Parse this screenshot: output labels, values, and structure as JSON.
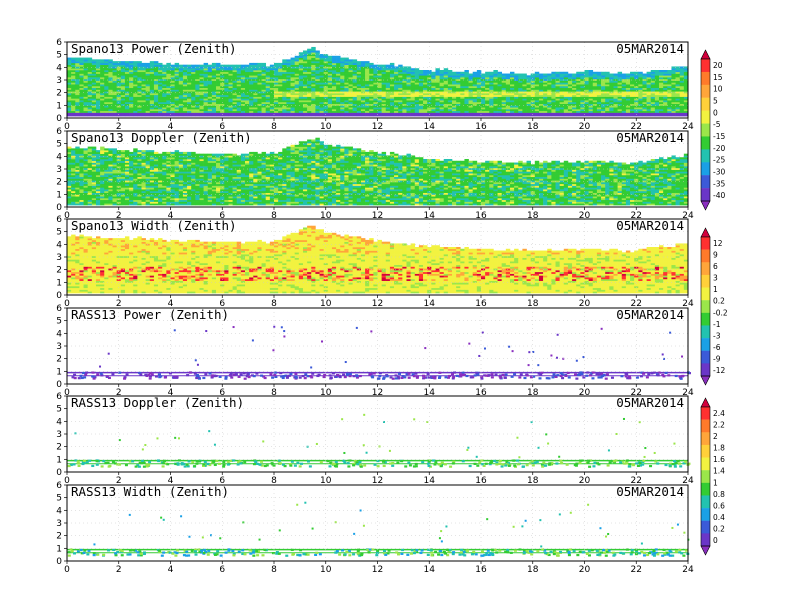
{
  "figure": {
    "date_label": "05MAR2014"
  },
  "chart_data": [
    {
      "type": "heatmap",
      "title": "Spano13 Power (Zenith)",
      "date": "05MAR2014",
      "x_ticks": [
        "0",
        "2",
        "4",
        "6",
        "8",
        "10",
        "12",
        "14",
        "16",
        "18",
        "20",
        "22",
        "24"
      ],
      "y_ticks": [
        "0",
        "1",
        "2",
        "3",
        "4",
        "5",
        "6"
      ],
      "xlim": [
        0,
        24
      ],
      "ylim": [
        0,
        6
      ],
      "grid": true,
      "colorscale": "shared-1",
      "data_top": [
        [
          0,
          4.8
        ],
        [
          2,
          4.6
        ],
        [
          4,
          4.4
        ],
        [
          6,
          4.3
        ],
        [
          8,
          4.3
        ],
        [
          9.5,
          5.6
        ],
        [
          10,
          5.0
        ],
        [
          12,
          4.4
        ],
        [
          14,
          3.9
        ],
        [
          16,
          3.7
        ],
        [
          18,
          3.6
        ],
        [
          20,
          3.7
        ],
        [
          22,
          3.6
        ],
        [
          24,
          4.2
        ]
      ],
      "features": [
        {
          "label": "low band",
          "height_km": 0.45,
          "value": -38
        },
        {
          "label": "bright layer",
          "height_km": 1.8,
          "value": 2
        }
      ]
    },
    {
      "type": "heatmap",
      "title": "Spano13 Doppler (Zenith)",
      "date": "05MAR2014",
      "x_ticks": [
        "0",
        "2",
        "4",
        "6",
        "8",
        "10",
        "12",
        "14",
        "16",
        "18",
        "20",
        "22",
        "24"
      ],
      "y_ticks": [
        "0",
        "1",
        "2",
        "3",
        "4",
        "5",
        "6"
      ],
      "xlim": [
        0,
        24
      ],
      "ylim": [
        0,
        6
      ],
      "grid": true,
      "colorscale": "shared-1",
      "data_top": [
        [
          0,
          4.8
        ],
        [
          2,
          4.6
        ],
        [
          4,
          4.4
        ],
        [
          6,
          4.3
        ],
        [
          8,
          4.3
        ],
        [
          9.5,
          5.6
        ],
        [
          10,
          5.0
        ],
        [
          12,
          4.4
        ],
        [
          14,
          3.9
        ],
        [
          16,
          3.7
        ],
        [
          18,
          3.6
        ],
        [
          20,
          3.7
        ],
        [
          22,
          3.6
        ],
        [
          24,
          4.2
        ]
      ],
      "features": []
    },
    {
      "type": "heatmap",
      "title": "Spano13 Width (Zenith)",
      "date": "05MAR2014",
      "x_ticks": [
        "0",
        "2",
        "4",
        "6",
        "8",
        "10",
        "12",
        "14",
        "16",
        "18",
        "20",
        "22",
        "24"
      ],
      "y_ticks": [
        "0",
        "1",
        "2",
        "3",
        "4",
        "5",
        "6"
      ],
      "xlim": [
        0,
        24
      ],
      "ylim": [
        0,
        6
      ],
      "grid": true,
      "colorscale": "shared-2",
      "data_top": [
        [
          0,
          4.8
        ],
        [
          2,
          4.6
        ],
        [
          4,
          4.4
        ],
        [
          6,
          4.3
        ],
        [
          8,
          4.3
        ],
        [
          9.5,
          5.6
        ],
        [
          10,
          5.0
        ],
        [
          12,
          4.4
        ],
        [
          14,
          3.9
        ],
        [
          16,
          3.7
        ],
        [
          18,
          3.6
        ],
        [
          20,
          3.7
        ],
        [
          22,
          3.6
        ],
        [
          24,
          4.2
        ]
      ],
      "features": [
        {
          "label": "high width layer",
          "height_km": 1.6,
          "value": 9
        }
      ]
    },
    {
      "type": "scatter",
      "title": "RASS13 Power (Zenith)",
      "date": "05MAR2014",
      "x_ticks": [
        "0",
        "2",
        "4",
        "6",
        "8",
        "10",
        "12",
        "14",
        "16",
        "18",
        "20",
        "22",
        "24"
      ],
      "y_ticks": [
        "0",
        "1",
        "2",
        "3",
        "4",
        "5",
        "6"
      ],
      "xlim": [
        0,
        24
      ],
      "ylim": [
        0,
        6
      ],
      "grid": true,
      "colorscale": "shared-2",
      "band_km": [
        0.5,
        1.0
      ],
      "band_value": -12
    },
    {
      "type": "scatter",
      "title": "RASS13 Doppler (Zenith)",
      "date": "05MAR2014",
      "x_ticks": [
        "0",
        "2",
        "4",
        "6",
        "8",
        "10",
        "12",
        "14",
        "16",
        "18",
        "20",
        "22",
        "24"
      ],
      "y_ticks": [
        "0",
        "1",
        "2",
        "3",
        "4",
        "5",
        "6"
      ],
      "xlim": [
        0,
        24
      ],
      "ylim": [
        0,
        6
      ],
      "grid": true,
      "colorscale": "shared-3",
      "band_km": [
        0.5,
        1.0
      ],
      "band_value": 1.1
    },
    {
      "type": "scatter",
      "title": "RASS13 Width (Zenith)",
      "date": "05MAR2014",
      "x_ticks": [
        "0",
        "2",
        "4",
        "6",
        "8",
        "10",
        "12",
        "14",
        "16",
        "18",
        "20",
        "22",
        "24"
      ],
      "y_ticks": [
        "0",
        "1",
        "2",
        "3",
        "4",
        "5",
        "6"
      ],
      "xlim": [
        0,
        24
      ],
      "ylim": [
        0,
        6
      ],
      "grid": true,
      "colorscale": "shared-3",
      "band_km": [
        0.5,
        1.0
      ],
      "band_value": 1.0
    }
  ],
  "colorbars": [
    {
      "name": "shared-1",
      "labels": [
        "20",
        "15",
        "10",
        "5",
        "0",
        "-5",
        "-15",
        "-20",
        "-25",
        "-30",
        "-35",
        "-40"
      ],
      "colors": [
        "#d2003c",
        "#ff3030",
        "#ff7a2a",
        "#ffa53a",
        "#ffd03a",
        "#f2f240",
        "#9be64a",
        "#33cc33",
        "#22c2b0",
        "#1aa0e6",
        "#3b5ad8",
        "#6a36c8",
        "#8a2fbf"
      ]
    },
    {
      "name": "shared-2",
      "labels": [
        "12",
        "9",
        "6",
        "3",
        "1",
        "0.2",
        "-0.2",
        "-1",
        "-3",
        "-6",
        "-9",
        "-12"
      ],
      "colors": [
        "#d2003c",
        "#ff3030",
        "#ff7a2a",
        "#ffa53a",
        "#ffd03a",
        "#f2f240",
        "#9be64a",
        "#33cc33",
        "#22c2b0",
        "#1aa0e6",
        "#3b5ad8",
        "#6a36c8",
        "#8a2fbf"
      ]
    },
    {
      "name": "shared-3",
      "labels": [
        "2.4",
        "2.2",
        "2",
        "1.8",
        "1.6",
        "1.4",
        "1",
        "0.8",
        "0.6",
        "0.4",
        "0.2",
        "0"
      ],
      "colors": [
        "#d2003c",
        "#ff3030",
        "#ff7a2a",
        "#ffa53a",
        "#ffd03a",
        "#f2f240",
        "#9be64a",
        "#33cc33",
        "#22c2b0",
        "#1aa0e6",
        "#3b5ad8",
        "#6a36c8",
        "#8a2fbf"
      ]
    }
  ]
}
